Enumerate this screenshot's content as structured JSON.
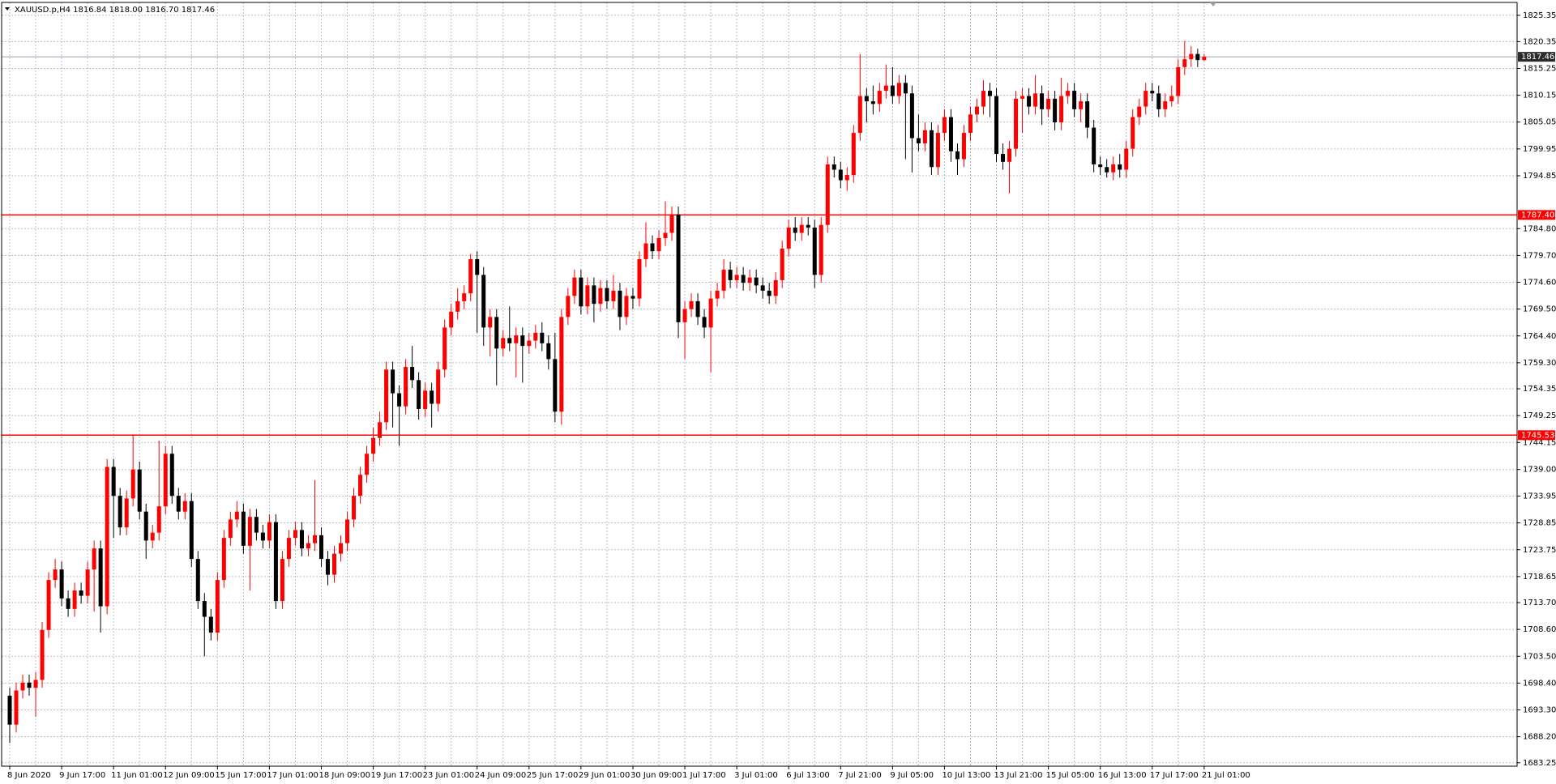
{
  "chart_data": {
    "type": "candlestick",
    "title": "XAUUSD.p,H4  1816.84 1818.00 1816.70 1817.46",
    "up_color": "#ff0000",
    "down_color": "#000000",
    "grid": true,
    "ylim": [
      1682.6,
      1827.8
    ],
    "yticks": [
      1825.35,
      1820.35,
      1815.25,
      1810.15,
      1805.05,
      1799.95,
      1794.85,
      {
        "value": 1784.8,
        "label": "1784.80"
      },
      {
        "value": 1779.7,
        "label": "1779.70"
      },
      {
        "value": 1774.6,
        "label": "1774.60"
      },
      {
        "value": 1769.5,
        "label": "1769.50"
      },
      {
        "value": 1764.4,
        "label": "1764.40"
      },
      {
        "value": 1759.3,
        "label": "1759.30"
      },
      1754.35,
      1749.25,
      1744.15,
      {
        "value": 1739.0,
        "label": "1739.00"
      },
      1733.95,
      1728.85,
      1723.75,
      1718.65,
      {
        "value": 1713.7,
        "label": "1713.70"
      },
      {
        "value": 1708.6,
        "label": "1708.60"
      },
      {
        "value": 1703.5,
        "label": "1703.50"
      },
      {
        "value": 1698.4,
        "label": "1698.40"
      },
      {
        "value": 1693.3,
        "label": "1693.30"
      },
      {
        "value": 1688.2,
        "label": "1688.20"
      },
      1683.25
    ],
    "levels": [
      {
        "value": 1787.4,
        "label": "1787.40",
        "color": "#ff0000"
      },
      {
        "value": 1745.53,
        "label": "1745.53",
        "color": "#ff0000"
      }
    ],
    "current_price": 1817.46,
    "categories": [
      "8 Jun 2020",
      null,
      null,
      null,
      null,
      null,
      null,
      null,
      "9 Jun 17:00",
      null,
      null,
      null,
      null,
      null,
      null,
      null,
      "11 Jun 01:00",
      null,
      null,
      null,
      null,
      null,
      null,
      null,
      "12 Jun 09:00",
      null,
      null,
      null,
      null,
      null,
      null,
      null,
      "15 Jun 17:00",
      null,
      null,
      null,
      null,
      null,
      null,
      null,
      "17 Jun 01:00",
      null,
      null,
      null,
      null,
      null,
      null,
      null,
      "18 Jun 09:00",
      null,
      null,
      null,
      null,
      null,
      null,
      null,
      "19 Jun 17:00",
      null,
      null,
      null,
      null,
      null,
      null,
      null,
      "23 Jun 01:00",
      null,
      null,
      null,
      null,
      null,
      null,
      null,
      "24 Jun 09:00",
      null,
      null,
      null,
      null,
      null,
      null,
      null,
      "25 Jun 17:00",
      null,
      null,
      null,
      null,
      null,
      null,
      null,
      "29 Jun 01:00",
      null,
      null,
      null,
      null,
      null,
      null,
      null,
      "30 Jun 09:00",
      null,
      null,
      null,
      null,
      null,
      null,
      null,
      "1 Jul 17:00",
      null,
      null,
      null,
      null,
      null,
      null,
      null,
      "3 Jul 01:00",
      null,
      null,
      null,
      null,
      null,
      null,
      null,
      "6 Jul 13:00",
      null,
      null,
      null,
      null,
      null,
      null,
      null,
      "7 Jul 21:00",
      null,
      null,
      null,
      null,
      null,
      null,
      null,
      "9 Jul 05:00",
      null,
      null,
      null,
      null,
      null,
      null,
      null,
      "10 Jul 13:00",
      null,
      null,
      null,
      null,
      null,
      null,
      null,
      "13 Jul 21:00",
      null,
      null,
      null,
      null,
      null,
      null,
      null,
      "15 Jul 05:00",
      null,
      null,
      null,
      null,
      null,
      null,
      null,
      "16 Jul 13:00",
      null,
      null,
      null,
      null,
      null,
      null,
      null,
      "17 Jul 17:00",
      null,
      null,
      null,
      null,
      null,
      null,
      null,
      "21 Jul 01:00"
    ],
    "open": [
      1696.0,
      1690.5,
      1697.0,
      1698.5,
      1697.5,
      1699.0,
      1708.5,
      1718.0,
      1720.0,
      1714.5,
      1712.5,
      1716.0,
      1715.0,
      1720.0,
      1724.0,
      1713.0,
      1739.5,
      1734.0,
      1728.0,
      1733.5,
      1739.0,
      1731.0,
      1725.5,
      1727.0,
      1732.0,
      1742.0,
      1734.0,
      1731.0,
      1733.0,
      1722.0,
      1714.0,
      1711.0,
      1708.0,
      1718.0,
      1726.0,
      1729.5,
      1731.0,
      1724.5,
      1730.0,
      1727.0,
      1725.5,
      1729.0,
      1714.0,
      1722.0,
      1726.0,
      1727.5,
      1724.0,
      1725.0,
      1726.5,
      1722.0,
      1719.0,
      1723.0,
      1725.0,
      1729.5,
      1734.0,
      1738.0,
      1742.0,
      1745.0,
      1748.0,
      1758.0,
      1753.5,
      1751.0,
      1758.5,
      1756.0,
      1750.5,
      1754.0,
      1751.5,
      1758.0,
      1766.0,
      1769.0,
      1771.0,
      1772.5,
      1779.0,
      1776.0,
      1766.0,
      1768.0,
      1762.0,
      1764.0,
      1763.0,
      1764.5,
      1762.5,
      1763.5,
      1765.0,
      1763.0,
      1760.0,
      1750.0,
      1768.0,
      1772.0,
      1775.5,
      1770.0,
      1774.0,
      1770.5,
      1773.5,
      1771.0,
      1773.0,
      1768.0,
      1772.0,
      1771.5,
      1779.0,
      1782.0,
      1780.5,
      1783.0,
      1784.0,
      1787.5,
      1767.0,
      1769.5,
      1771.0,
      1768.0,
      1766.0,
      1771.5,
      1773.0,
      1777.0,
      1775.0,
      1776.0,
      1774.5,
      1775.5,
      1774.0,
      1773.0,
      1772.0,
      1775.0,
      1781.0,
      1785.0,
      1784.0,
      1785.5,
      1785.0,
      1776.0,
      1785.5,
      1797.0,
      1796.0,
      1794.0,
      1795.0,
      1803.0,
      1810.0,
      1809.0,
      1808.5,
      1811.0,
      1812.0,
      1810.0,
      1812.5,
      1810.5,
      1802.0,
      1801.0,
      1803.5,
      1796.5,
      1803.0,
      1806.0,
      1799.5,
      1798.0,
      1803.0,
      1806.5,
      1808.0,
      1811.0,
      1810.0,
      1799.0,
      1797.5,
      1800.0,
      1809.5,
      1810.0,
      1808.0,
      1810.5,
      1807.5,
      1809.5,
      1805.0,
      1810.0,
      1811.0,
      1807.5,
      1809.0,
      1804.0,
      1797.0,
      1796.5,
      1795.5,
      1797.0,
      1796.0,
      1800.0,
      1806.0,
      1808.0,
      1811.0,
      1810.5,
      1807.5,
      1809.0,
      1810.0,
      1815.5,
      1817.0,
      1818.0,
      1816.84
    ],
    "high": [
      1697.5,
      1698.5,
      1700.0,
      1700.0,
      1700.5,
      1710.0,
      1719.5,
      1722.0,
      1721.5,
      1716.0,
      1717.5,
      1717.5,
      1721.5,
      1725.5,
      1725.5,
      1741.0,
      1741.0,
      1735.5,
      1735.0,
      1745.5,
      1740.5,
      1732.5,
      1728.5,
      1744.5,
      1743.5,
      1743.5,
      1735.5,
      1734.5,
      1734.5,
      1723.5,
      1715.5,
      1712.5,
      1719.5,
      1727.5,
      1731.0,
      1733.0,
      1732.5,
      1731.5,
      1731.5,
      1728.5,
      1730.5,
      1730.5,
      1723.5,
      1727.5,
      1729.0,
      1729.0,
      1726.5,
      1737.0,
      1728.0,
      1723.5,
      1724.5,
      1726.5,
      1731.0,
      1735.5,
      1739.5,
      1743.5,
      1747.0,
      1750.0,
      1759.5,
      1759.5,
      1755.0,
      1760.0,
      1762.5,
      1757.5,
      1755.5,
      1755.5,
      1759.5,
      1767.5,
      1770.5,
      1773.5,
      1774.0,
      1780.0,
      1780.5,
      1777.5,
      1769.5,
      1769.5,
      1765.5,
      1770.0,
      1766.0,
      1766.0,
      1765.0,
      1766.5,
      1767.0,
      1764.5,
      1765.0,
      1769.5,
      1773.5,
      1777.0,
      1777.0,
      1775.5,
      1775.5,
      1775.0,
      1775.0,
      1776.0,
      1774.5,
      1773.5,
      1773.5,
      1780.5,
      1786.0,
      1783.5,
      1784.5,
      1790.0,
      1789.0,
      1789.0,
      1771.0,
      1772.5,
      1772.5,
      1769.5,
      1773.0,
      1774.5,
      1779.0,
      1778.5,
      1777.5,
      1777.5,
      1777.0,
      1777.0,
      1775.5,
      1774.5,
      1776.5,
      1782.5,
      1786.5,
      1787.0,
      1787.0,
      1787.0,
      1786.5,
      1787.0,
      1798.5,
      1798.5,
      1797.5,
      1796.5,
      1804.5,
      1818.0,
      1811.5,
      1812.0,
      1812.5,
      1816.0,
      1815.5,
      1814.0,
      1814.0,
      1812.0,
      1806.5,
      1805.0,
      1805.0,
      1804.5,
      1807.5,
      1807.5,
      1801.0,
      1804.5,
      1808.0,
      1809.5,
      1813.0,
      1812.5,
      1811.5,
      1801.0,
      1801.5,
      1811.0,
      1811.5,
      1811.5,
      1814.0,
      1812.0,
      1811.0,
      1811.0,
      1813.5,
      1812.5,
      1812.5,
      1810.5,
      1810.5,
      1805.5,
      1798.5,
      1798.0,
      1798.5,
      1799.0,
      1801.5,
      1807.5,
      1809.5,
      1812.5,
      1812.5,
      1812.0,
      1810.5,
      1812.0,
      1817.0,
      1820.5,
      1819.5,
      1819.0,
      1818.0
    ],
    "low": [
      1687.0,
      1689.0,
      1695.5,
      1696.0,
      1692.0,
      1697.5,
      1707.0,
      1716.5,
      1713.0,
      1711.0,
      1711.0,
      1713.5,
      1713.5,
      1712.0,
      1708.0,
      1711.5,
      1726.0,
      1726.5,
      1726.5,
      1732.0,
      1729.5,
      1722.0,
      1724.0,
      1725.5,
      1730.5,
      1732.5,
      1729.5,
      1729.5,
      1720.5,
      1712.5,
      1703.5,
      1706.5,
      1706.5,
      1716.5,
      1724.5,
      1728.0,
      1723.0,
      1716.0,
      1725.5,
      1724.0,
      1724.0,
      1712.5,
      1712.5,
      1720.5,
      1724.5,
      1722.5,
      1722.5,
      1723.5,
      1720.5,
      1717.0,
      1717.5,
      1721.5,
      1723.5,
      1728.0,
      1732.5,
      1736.5,
      1740.5,
      1743.5,
      1746.5,
      1747.0,
      1743.5,
      1749.5,
      1754.5,
      1748.5,
      1749.0,
      1747.0,
      1750.0,
      1756.5,
      1764.5,
      1767.5,
      1769.5,
      1771.0,
      1765.0,
      1762.5,
      1760.5,
      1755.0,
      1760.5,
      1761.5,
      1756.5,
      1755.5,
      1761.0,
      1762.0,
      1761.5,
      1758.0,
      1748.0,
      1747.5,
      1766.5,
      1770.5,
      1768.5,
      1768.5,
      1767.0,
      1769.0,
      1769.5,
      1769.5,
      1765.5,
      1766.5,
      1769.5,
      1770.0,
      1777.5,
      1779.0,
      1779.0,
      1781.5,
      1782.5,
      1764.0,
      1760.0,
      1768.0,
      1766.5,
      1764.0,
      1757.5,
      1770.0,
      1771.5,
      1773.5,
      1773.5,
      1773.0,
      1773.0,
      1772.5,
      1771.5,
      1770.5,
      1770.5,
      1773.5,
      1779.5,
      1782.5,
      1782.5,
      1783.5,
      1773.5,
      1774.5,
      1784.0,
      1794.5,
      1792.5,
      1792.0,
      1793.5,
      1801.5,
      1805.0,
      1806.5,
      1807.0,
      1809.5,
      1808.5,
      1808.5,
      1798.0,
      1795.5,
      1799.5,
      1799.5,
      1795.0,
      1795.0,
      1801.5,
      1797.5,
      1795.0,
      1796.5,
      1801.5,
      1805.0,
      1806.5,
      1806.0,
      1797.5,
      1796.0,
      1791.5,
      1798.5,
      1803.0,
      1806.5,
      1806.5,
      1804.5,
      1806.0,
      1803.5,
      1803.5,
      1808.5,
      1806.0,
      1805.0,
      1802.0,
      1795.5,
      1795.0,
      1794.5,
      1794.0,
      1794.5,
      1794.5,
      1798.5,
      1804.5,
      1806.5,
      1809.0,
      1806.0,
      1806.0,
      1808.0,
      1808.5,
      1814.0,
      1815.5,
      1815.5,
      1816.7
    ],
    "close": [
      1690.5,
      1697.0,
      1698.5,
      1697.5,
      1699.0,
      1708.5,
      1718.0,
      1720.0,
      1714.5,
      1712.5,
      1716.0,
      1715.0,
      1720.0,
      1724.0,
      1713.0,
      1739.5,
      1734.0,
      1728.0,
      1733.5,
      1739.0,
      1731.0,
      1725.5,
      1727.0,
      1732.0,
      1742.0,
      1734.0,
      1731.0,
      1733.0,
      1722.0,
      1714.0,
      1711.0,
      1708.0,
      1718.0,
      1726.0,
      1729.5,
      1731.0,
      1724.5,
      1730.0,
      1727.0,
      1725.5,
      1729.0,
      1714.0,
      1722.0,
      1726.0,
      1727.5,
      1724.0,
      1725.0,
      1726.5,
      1722.0,
      1719.0,
      1723.0,
      1725.0,
      1729.5,
      1734.0,
      1738.0,
      1742.0,
      1745.0,
      1748.0,
      1758.0,
      1753.5,
      1751.0,
      1758.5,
      1756.0,
      1750.5,
      1754.0,
      1751.5,
      1758.0,
      1766.0,
      1769.0,
      1771.0,
      1772.5,
      1779.0,
      1776.0,
      1766.0,
      1768.0,
      1762.0,
      1764.0,
      1763.0,
      1764.5,
      1762.5,
      1763.5,
      1765.0,
      1763.0,
      1760.0,
      1750.0,
      1768.0,
      1772.0,
      1775.5,
      1770.0,
      1774.0,
      1770.5,
      1773.5,
      1771.0,
      1773.0,
      1768.0,
      1772.0,
      1771.5,
      1779.0,
      1782.0,
      1780.5,
      1783.0,
      1784.0,
      1787.5,
      1767.0,
      1769.5,
      1771.0,
      1768.0,
      1766.0,
      1771.5,
      1773.0,
      1777.0,
      1775.0,
      1776.0,
      1774.5,
      1775.5,
      1774.0,
      1773.0,
      1772.0,
      1775.0,
      1781.0,
      1785.0,
      1784.0,
      1785.5,
      1785.0,
      1776.0,
      1785.5,
      1797.0,
      1796.0,
      1794.0,
      1795.0,
      1803.0,
      1810.0,
      1809.0,
      1808.5,
      1811.0,
      1812.0,
      1810.0,
      1812.5,
      1810.5,
      1802.0,
      1801.0,
      1803.5,
      1796.5,
      1803.0,
      1806.0,
      1799.5,
      1798.0,
      1803.0,
      1806.5,
      1808.0,
      1811.0,
      1810.0,
      1799.0,
      1797.5,
      1800.0,
      1809.5,
      1810.0,
      1808.0,
      1810.5,
      1807.5,
      1809.5,
      1805.0,
      1810.0,
      1811.0,
      1807.5,
      1809.0,
      1804.0,
      1797.0,
      1796.5,
      1795.5,
      1797.0,
      1796.0,
      1800.0,
      1806.0,
      1808.0,
      1811.0,
      1810.5,
      1807.5,
      1809.0,
      1810.0,
      1815.5,
      1817.0,
      1818.0,
      1816.84,
      1817.46
    ]
  }
}
